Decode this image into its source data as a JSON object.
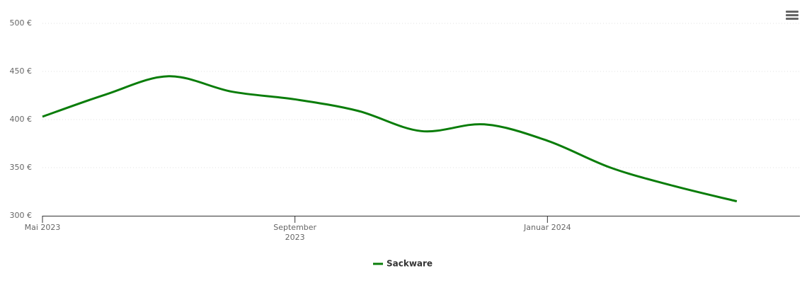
{
  "chart_data": {
    "type": "line",
    "x": [
      "2023-05",
      "2023-06",
      "2023-07",
      "2023-08",
      "2023-09",
      "2023-10",
      "2023-11",
      "2023-12",
      "2024-01",
      "2024-02",
      "2024-03",
      "2024-04"
    ],
    "series": [
      {
        "name": "Sackware",
        "color": "#0a7d0a",
        "values": [
          403,
          426,
          445,
          429,
          421,
          409,
          388,
          395,
          378,
          350,
          331,
          315
        ]
      }
    ],
    "xlim": [
      "2023-05",
      "2024-05"
    ],
    "xticks": [
      {
        "value": "2023-05",
        "label": "Mai 2023"
      },
      {
        "value": "2023-09",
        "label": "September 2023"
      },
      {
        "value": "2024-01",
        "label": "Januar 2024"
      }
    ],
    "ylim": [
      300,
      500
    ],
    "yticks": [
      {
        "value": 300,
        "label": "300 €"
      },
      {
        "value": 350,
        "label": "350 €"
      },
      {
        "value": 400,
        "label": "400 €"
      },
      {
        "value": 450,
        "label": "450 €"
      },
      {
        "value": 500,
        "label": "500 €"
      }
    ],
    "grid": true
  }
}
